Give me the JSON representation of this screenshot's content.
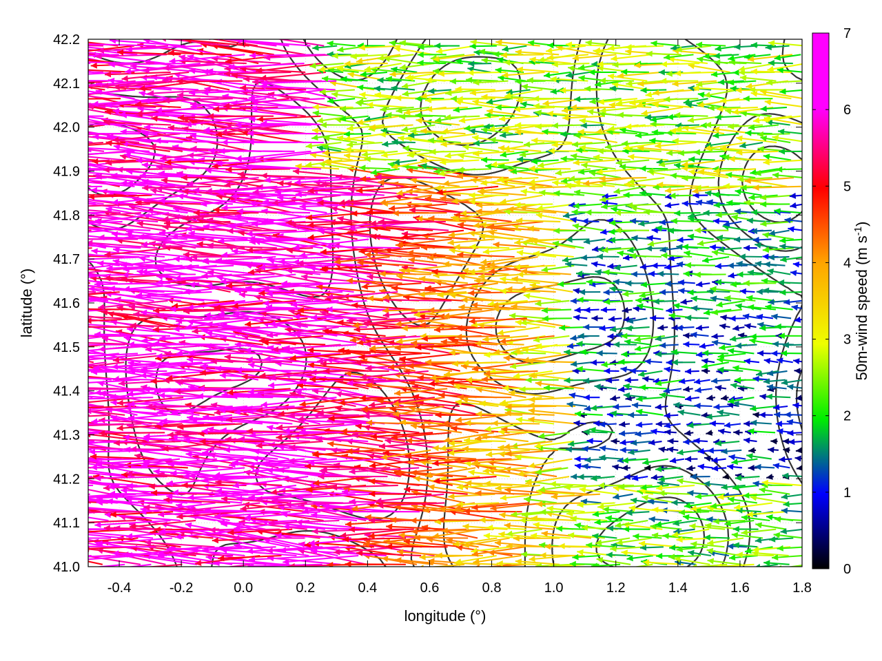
{
  "chart_data": {
    "type": "vector-field",
    "title": "",
    "xlabel": "longitude (°)",
    "ylabel": "latitude (°)",
    "xlim": [
      -0.5,
      1.8
    ],
    "ylim": [
      41.0,
      42.2
    ],
    "xticks": [
      -0.4,
      -0.2,
      0.0,
      0.2,
      0.4,
      0.6,
      0.8,
      1.0,
      1.2,
      1.4,
      1.6,
      1.8
    ],
    "xtick_labels": [
      "-0.4",
      "-0.2",
      "0.0",
      "0.2",
      "0.4",
      "0.6",
      "0.8",
      "1.0",
      "1.2",
      "1.4",
      "1.6",
      "1.8"
    ],
    "yticks": [
      41.0,
      41.1,
      41.2,
      41.3,
      41.4,
      41.5,
      41.6,
      41.7,
      41.8,
      41.9,
      42.0,
      42.1,
      42.2
    ],
    "ytick_labels": [
      "41.0",
      "41.1",
      "41.2",
      "41.3",
      "41.4",
      "41.5",
      "41.6",
      "41.7",
      "41.8",
      "41.9",
      "42.0",
      "42.1",
      "42.2"
    ],
    "grid": true,
    "colorbar": {
      "label": "50m-wind speed (m s-1)",
      "label_base": "50m-wind speed (m s",
      "label_sup": "-1",
      "label_end": ")",
      "min": 0,
      "max": 7,
      "ticks": [
        0,
        1,
        2,
        3,
        4,
        5,
        6,
        7
      ],
      "tick_labels": [
        "0",
        "1",
        "2",
        "3",
        "4",
        "5",
        "6",
        "7"
      ],
      "palette": [
        "#000000",
        "#0000ff",
        "#00ee00",
        "#eeff00",
        "#ffa500",
        "#ff0000",
        "#ff00ff"
      ]
    },
    "arrow_direction": "westward (from east)",
    "speed_regions_estimated": [
      {
        "region": "west, lon < 0.3",
        "speed_ms": 7
      },
      {
        "region": "central, lon 0.3-1.0",
        "speed_ms": 4
      },
      {
        "region": "east, lon > 1.1, lat 41.2-41.8",
        "speed_ms": 1
      },
      {
        "region": "southeast, lon > 1.2, lat < 41.2",
        "speed_ms": 2.5
      },
      {
        "region": "north, lat > 41.9",
        "speed_ms": 3
      }
    ],
    "contour_color": "#333333"
  }
}
